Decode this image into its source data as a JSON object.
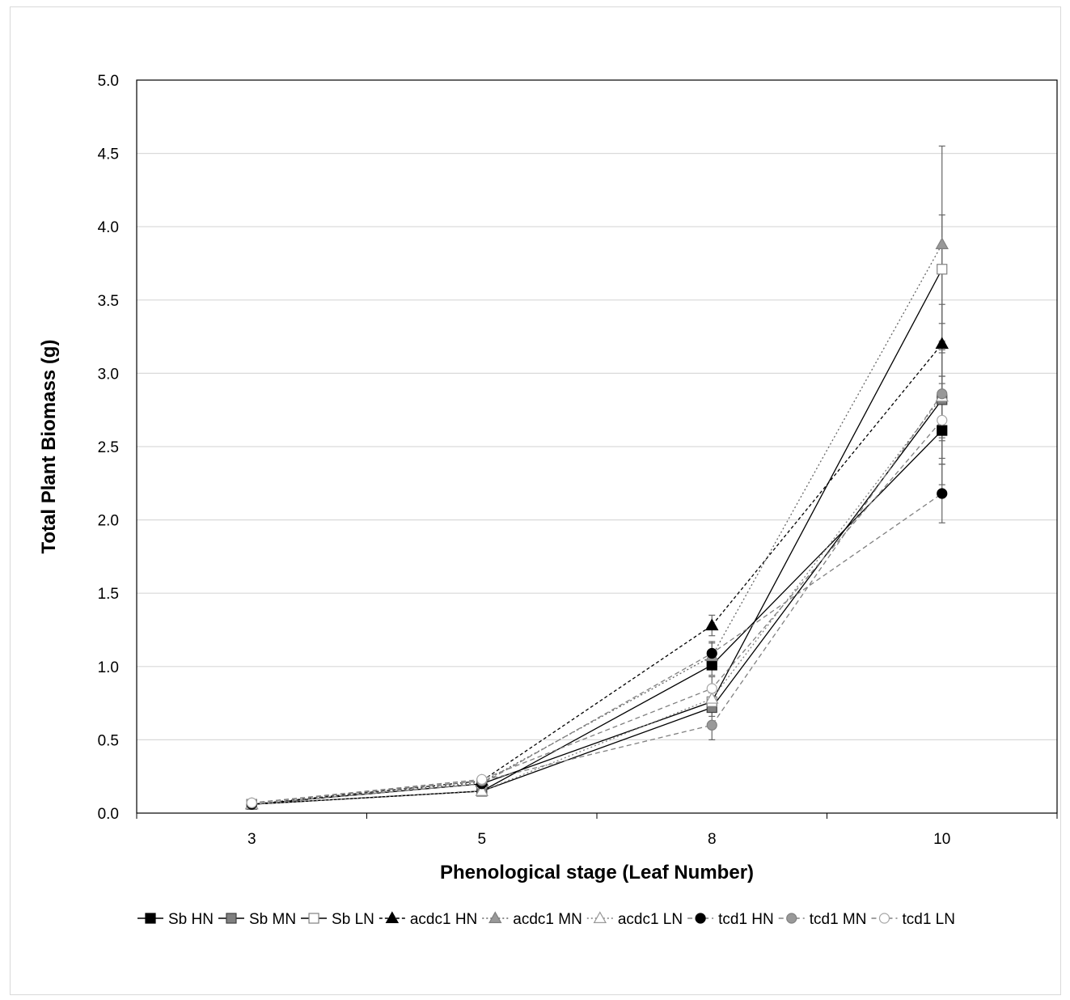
{
  "chart_data": {
    "type": "line",
    "xlabel": "Phenological stage (Leaf Number)",
    "ylabel": "Total Plant Biomass (g)",
    "x": [
      3,
      5,
      8,
      10
    ],
    "x_tick_labels": [
      "3",
      "5",
      "8",
      "10"
    ],
    "ylim": [
      0,
      5
    ],
    "y_tick_labels": [
      "0.0",
      "0.5",
      "1.0",
      "1.5",
      "2.0",
      "2.5",
      "3.0",
      "3.5",
      "4.0",
      "4.5",
      "5.0"
    ],
    "grid": "horizontal",
    "legend_position": "bottom",
    "series": [
      {
        "name": "Sb HN",
        "values": [
          0.06,
          0.15,
          1.01,
          2.61
        ],
        "errors": [
          0.01,
          0.02,
          0.07,
          0.37
        ],
        "marker": "square",
        "fill": "#000000",
        "stroke": "#000000",
        "line_color": "#000000",
        "dash": "solid"
      },
      {
        "name": "Sb MN",
        "values": [
          0.06,
          0.15,
          0.72,
          2.82
        ],
        "errors": [
          0.01,
          0.02,
          0.06,
          0.4
        ],
        "marker": "square",
        "fill": "#808080",
        "stroke": "#404040",
        "line_color": "#000000",
        "dash": "solid"
      },
      {
        "name": "Sb LN",
        "values": [
          0.06,
          0.2,
          0.76,
          3.71
        ],
        "errors": [
          0.01,
          0.02,
          0.06,
          0.37
        ],
        "marker": "square",
        "fill": "#ffffff",
        "stroke": "#808080",
        "line_color": "#000000",
        "dash": "solid"
      },
      {
        "name": "acdc1 HN",
        "values": [
          0.06,
          0.22,
          1.28,
          3.2
        ],
        "errors": [
          0.01,
          0.02,
          0.07,
          0.27
        ],
        "marker": "triangle",
        "fill": "#000000",
        "stroke": "#000000",
        "line_color": "#000000",
        "dash": "dashed"
      },
      {
        "name": "acdc1 MN",
        "values": [
          0.06,
          0.21,
          1.07,
          3.88
        ],
        "errors": [
          0.01,
          0.02,
          0.09,
          0.67
        ],
        "marker": "triangle",
        "fill": "#999999",
        "stroke": "#808080",
        "line_color": "#666666",
        "dash": "dotted"
      },
      {
        "name": "acdc1 LN",
        "values": [
          0.06,
          0.15,
          0.78,
          2.84
        ],
        "errors": [
          0.01,
          0.02,
          0.07,
          0.3
        ],
        "marker": "triangle",
        "fill": "#ffffff",
        "stroke": "#999999",
        "line_color": "#808080",
        "dash": "dotted"
      },
      {
        "name": "tcd1 HN",
        "values": [
          0.06,
          0.2,
          1.09,
          2.18
        ],
        "errors": [
          0.01,
          0.02,
          0.08,
          0.2
        ],
        "marker": "circle",
        "fill": "#000000",
        "stroke": "#000000",
        "line_color": "#808080",
        "dash": "dashdot"
      },
      {
        "name": "tcd1 MN",
        "values": [
          0.07,
          0.22,
          0.6,
          2.86
        ],
        "errors": [
          0.01,
          0.02,
          0.1,
          0.3
        ],
        "marker": "circle",
        "fill": "#999999",
        "stroke": "#808080",
        "line_color": "#808080",
        "dash": "dashdot"
      },
      {
        "name": "tcd1 LN",
        "values": [
          0.07,
          0.23,
          0.85,
          2.68
        ],
        "errors": [
          0.01,
          0.02,
          0.08,
          0.3
        ],
        "marker": "circle",
        "fill": "#ffffff",
        "stroke": "#a6a6a6",
        "line_color": "#808080",
        "dash": "dashdot"
      }
    ]
  }
}
